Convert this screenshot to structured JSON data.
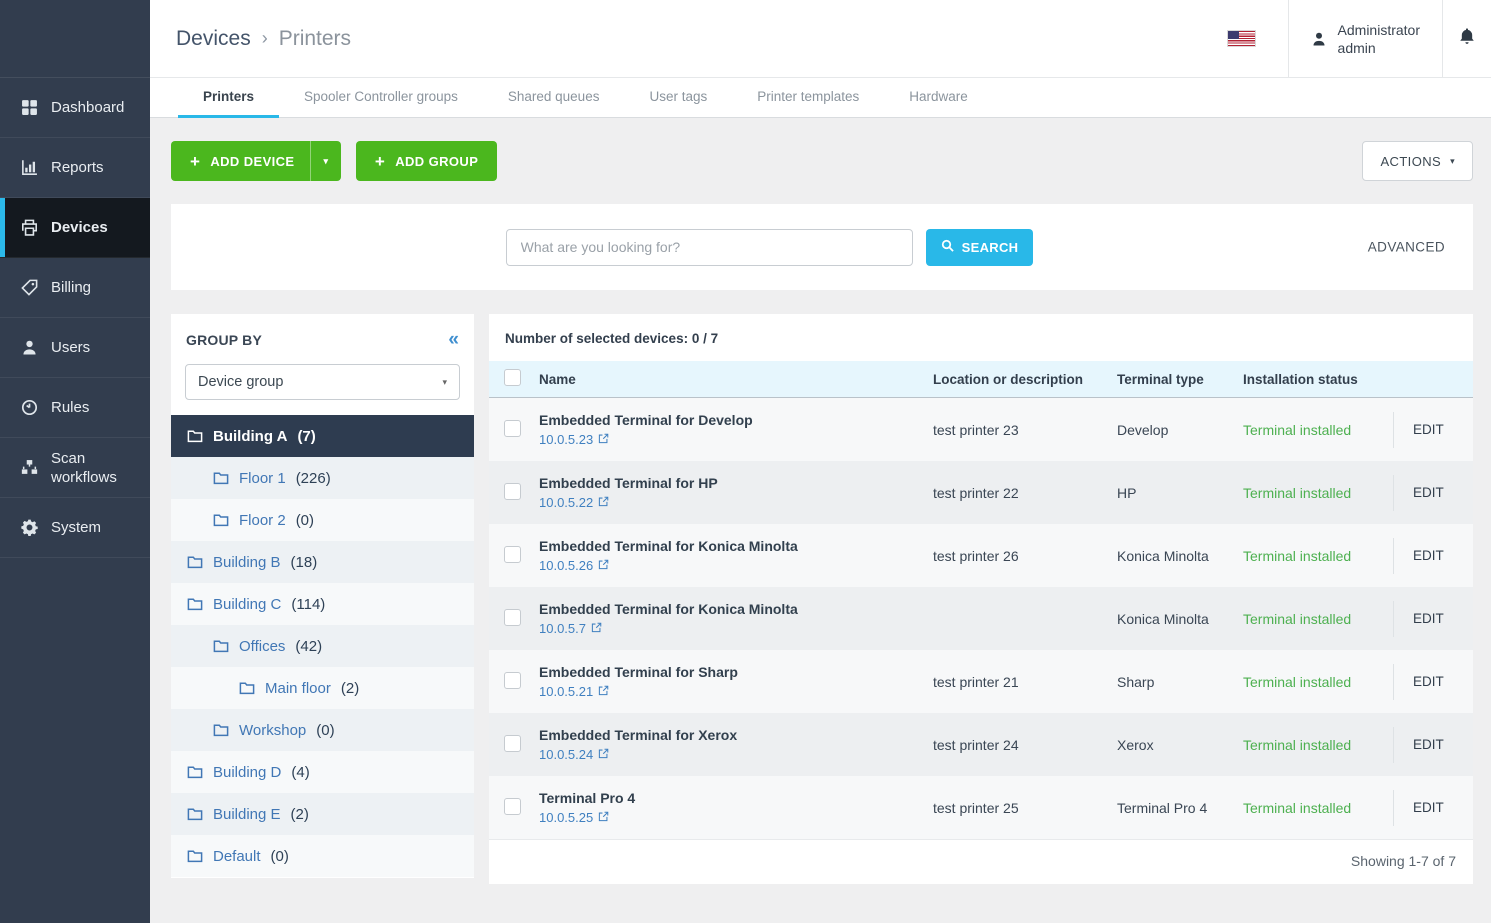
{
  "header": {
    "breadcrumb": {
      "parent": "Devices",
      "separator": "›",
      "current": "Printers"
    },
    "user": {
      "name": "Administrator",
      "role": "admin"
    },
    "language_flag": "us-flag-icon"
  },
  "sidebar": {
    "items": [
      {
        "label": "Dashboard",
        "icon": "dashboard-icon",
        "active": false
      },
      {
        "label": "Reports",
        "icon": "reports-icon",
        "active": false
      },
      {
        "label": "Devices",
        "icon": "printer-icon",
        "active": true
      },
      {
        "label": "Billing",
        "icon": "billing-tag-icon",
        "active": false
      },
      {
        "label": "Users",
        "icon": "users-icon",
        "active": false
      },
      {
        "label": "Rules",
        "icon": "rules-clock-icon",
        "active": false
      },
      {
        "label": "Scan workflows",
        "icon": "scan-workflows-icon",
        "active": false
      },
      {
        "label": "System",
        "icon": "system-gear-icon",
        "active": false
      }
    ]
  },
  "tabs": [
    {
      "label": "Printers",
      "active": true
    },
    {
      "label": "Spooler Controller groups",
      "active": false
    },
    {
      "label": "Shared queues",
      "active": false
    },
    {
      "label": "User tags",
      "active": false
    },
    {
      "label": "Printer templates",
      "active": false
    },
    {
      "label": "Hardware",
      "active": false
    }
  ],
  "toolbar": {
    "add_device_label": "ADD DEVICE",
    "add_group_label": "ADD GROUP",
    "actions_label": "ACTIONS",
    "plus_glyph": "+",
    "caret_glyph": "▾"
  },
  "search": {
    "placeholder": "What are you looking for?",
    "search_label": "SEARCH",
    "advanced_label": "ADVANCED"
  },
  "group_by": {
    "title": "GROUP BY",
    "collapse_glyph": "«",
    "selected_option": "Device group",
    "tree": [
      {
        "label": "Building A",
        "count": 7,
        "level": 0,
        "selected": true
      },
      {
        "label": "Floor 1",
        "count": 226,
        "level": 1,
        "selected": false
      },
      {
        "label": "Floor 2",
        "count": 0,
        "level": 1,
        "selected": false
      },
      {
        "label": "Building B",
        "count": 18,
        "level": 0,
        "selected": false
      },
      {
        "label": "Building C",
        "count": 114,
        "level": 0,
        "selected": false
      },
      {
        "label": "Offices",
        "count": 42,
        "level": 1,
        "selected": false
      },
      {
        "label": "Main floor",
        "count": 2,
        "level": 2,
        "selected": false
      },
      {
        "label": "Workshop",
        "count": 0,
        "level": 1,
        "selected": false
      },
      {
        "label": "Building D",
        "count": 4,
        "level": 0,
        "selected": false
      },
      {
        "label": "Building E",
        "count": 2,
        "level": 0,
        "selected": false
      },
      {
        "label": "Default",
        "count": 0,
        "level": 0,
        "selected": false
      }
    ]
  },
  "devices": {
    "selection_summary": "Number of selected devices: 0 / 7",
    "columns": {
      "name": "Name",
      "location": "Location or description",
      "terminal_type": "Terminal type",
      "status": "Installation status"
    },
    "rows": [
      {
        "name": "Embedded Terminal for Develop",
        "ip": "10.0.5.23",
        "location": "test printer 23",
        "terminal_type": "Develop",
        "status": "Terminal installed",
        "action": "EDIT"
      },
      {
        "name": "Embedded Terminal for HP",
        "ip": "10.0.5.22",
        "location": "test printer 22",
        "terminal_type": "HP",
        "status": "Terminal installed",
        "action": "EDIT"
      },
      {
        "name": "Embedded Terminal for Konica Minolta",
        "ip": "10.0.5.26",
        "location": "test printer 26",
        "terminal_type": "Konica Minolta",
        "status": "Terminal installed",
        "action": "EDIT"
      },
      {
        "name": "Embedded Terminal for Konica Minolta",
        "ip": "10.0.5.7",
        "location": "",
        "terminal_type": "Konica Minolta",
        "status": "Terminal installed",
        "action": "EDIT"
      },
      {
        "name": "Embedded Terminal for Sharp",
        "ip": "10.0.5.21",
        "location": "test printer 21",
        "terminal_type": "Sharp",
        "status": "Terminal installed",
        "action": "EDIT"
      },
      {
        "name": "Embedded Terminal for Xerox",
        "ip": "10.0.5.24",
        "location": "test printer 24",
        "terminal_type": "Xerox",
        "status": "Terminal installed",
        "action": "EDIT"
      },
      {
        "name": "Terminal Pro 4",
        "ip": "10.0.5.25",
        "location": "test printer 25",
        "terminal_type": "Terminal Pro 4",
        "status": "Terminal installed",
        "action": "EDIT"
      }
    ],
    "footer": "Showing 1-7 of 7"
  },
  "colors": {
    "accent_cyan": "#29b8e8",
    "accent_green": "#4bb71e",
    "sidebar_dark": "#323d4e",
    "sidebar_active": "#14191f",
    "status_green": "#4db050",
    "link_blue": "#4080c0",
    "table_header_bg": "#e6f6fd",
    "tree_selected_bg": "#2e3c50"
  }
}
